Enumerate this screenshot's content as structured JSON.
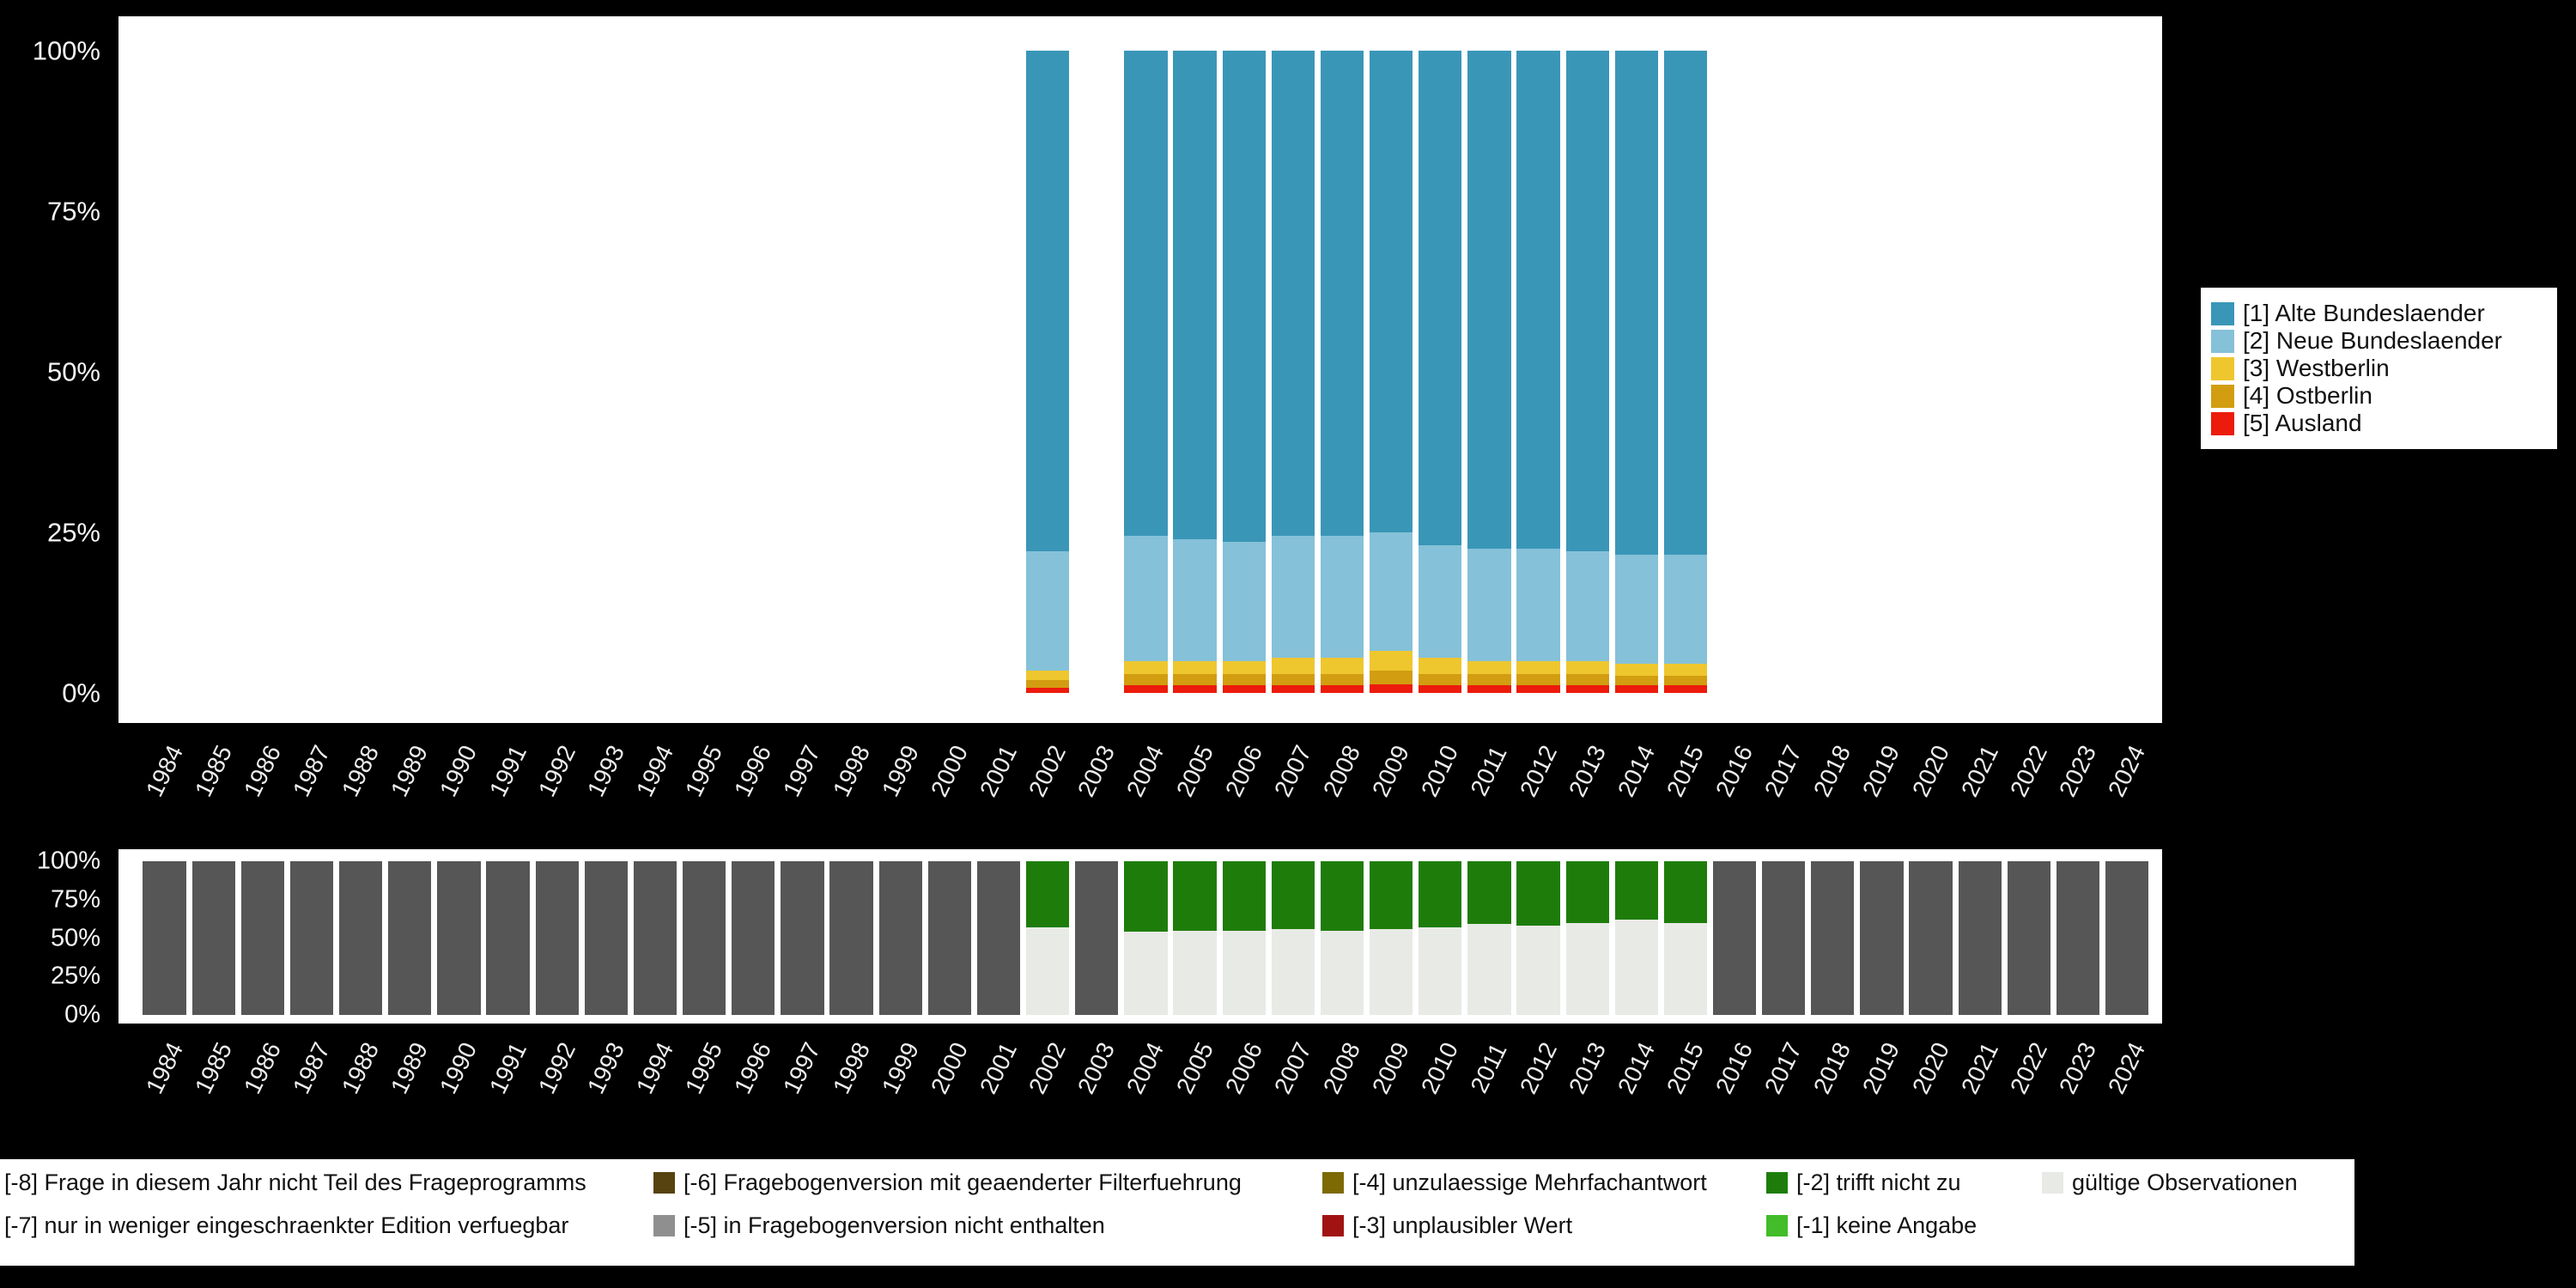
{
  "colors": {
    "background": "#000000",
    "panel": "#ffffff",
    "axis_text": "#ffffff"
  },
  "y_ticks": [
    "100%",
    "75%",
    "50%",
    "25%",
    "0%"
  ],
  "years": [
    1984,
    1985,
    1986,
    1987,
    1988,
    1989,
    1990,
    1991,
    1992,
    1993,
    1994,
    1995,
    1996,
    1997,
    1998,
    1999,
    2000,
    2001,
    2002,
    2003,
    2004,
    2005,
    2006,
    2007,
    2008,
    2009,
    2010,
    2011,
    2012,
    2013,
    2014,
    2015,
    2016,
    2017,
    2018,
    2019,
    2020,
    2021,
    2022,
    2023,
    2024
  ],
  "region_legend": {
    "items": [
      {
        "label": "[1] Alte Bundeslaender",
        "color": "#3a96b7"
      },
      {
        "label": "[2] Neue Bundeslaender",
        "color": "#85c1d8"
      },
      {
        "label": "[3] Westberlin",
        "color": "#eec72f"
      },
      {
        "label": "[4] Ostberlin",
        "color": "#d29d10"
      },
      {
        "label": "[5] Ausland",
        "color": "#ec1b0c"
      }
    ]
  },
  "missing_legend": {
    "columns": [
      [
        {
          "label": "[-8] Frage in diesem Jahr nicht Teil des Frageprogramms",
          "color": "#565656"
        },
        {
          "label": "[-7] nur in weniger eingeschraenkter Edition verfuegbar",
          "color": "#9a9a9a"
        }
      ],
      [
        {
          "label": "[-6] Fragebogenversion mit geaenderter Filterfuehrung",
          "color": "#564310"
        },
        {
          "label": "[-5] in Fragebogenversion nicht enthalten",
          "color": "#8f8f8f"
        }
      ],
      [
        {
          "label": "[-4] unzulaessige Mehrfachantwort",
          "color": "#7d6a05"
        },
        {
          "label": "[-3] unplausibler Wert",
          "color": "#a11313"
        }
      ],
      [
        {
          "label": "[-2] trifft nicht zu",
          "color": "#1e7d0a"
        },
        {
          "label": "[-1] keine Angabe",
          "color": "#42bc28"
        }
      ],
      [
        {
          "label": "gültige Observationen",
          "color": "#e8eae5"
        }
      ]
    ]
  },
  "chart_data": [
    {
      "type": "bar",
      "stacked": true,
      "title": "",
      "xlabel": "",
      "ylabel": "",
      "ylim": [
        0,
        100
      ],
      "grid": false,
      "legend_position": "right",
      "categories": [
        1984,
        1985,
        1986,
        1987,
        1988,
        1989,
        1990,
        1991,
        1992,
        1993,
        1994,
        1995,
        1996,
        1997,
        1998,
        1999,
        2000,
        2001,
        2002,
        2003,
        2004,
        2005,
        2006,
        2007,
        2008,
        2009,
        2010,
        2011,
        2012,
        2013,
        2014,
        2015,
        2016,
        2017,
        2018,
        2019,
        2020,
        2021,
        2022,
        2023,
        2024
      ],
      "series": [
        {
          "name": "[5] Ausland",
          "color": "#ec1b0c",
          "values": [
            0,
            0,
            0,
            0,
            0,
            0,
            0,
            0,
            0,
            0,
            0,
            0,
            0,
            0,
            0,
            0,
            0,
            0,
            0.8,
            0,
            1.2,
            1.2,
            1.2,
            1.2,
            1.2,
            1.3,
            1.2,
            1.2,
            1.2,
            1.2,
            1.2,
            1.2,
            0,
            0,
            0,
            0,
            0,
            0,
            0,
            0,
            0
          ]
        },
        {
          "name": "[4] Ostberlin",
          "color": "#d29d10",
          "values": [
            0,
            0,
            0,
            0,
            0,
            0,
            0,
            0,
            0,
            0,
            0,
            0,
            0,
            0,
            0,
            0,
            0,
            0,
            1.2,
            0,
            1.8,
            1.8,
            1.8,
            1.8,
            1.8,
            2.2,
            1.8,
            1.8,
            1.8,
            1.8,
            1.5,
            1.5,
            0,
            0,
            0,
            0,
            0,
            0,
            0,
            0,
            0
          ]
        },
        {
          "name": "[3] Westberlin",
          "color": "#eec72f",
          "values": [
            0,
            0,
            0,
            0,
            0,
            0,
            0,
            0,
            0,
            0,
            0,
            0,
            0,
            0,
            0,
            0,
            0,
            0,
            1.5,
            0,
            2,
            2,
            2,
            2.5,
            2.5,
            3,
            2.5,
            2,
            2,
            2,
            1.8,
            1.8,
            0,
            0,
            0,
            0,
            0,
            0,
            0,
            0,
            0
          ]
        },
        {
          "name": "[2] Neue Bundeslaender",
          "color": "#85c1d8",
          "values": [
            0,
            0,
            0,
            0,
            0,
            0,
            0,
            0,
            0,
            0,
            0,
            0,
            0,
            0,
            0,
            0,
            0,
            0,
            18.5,
            0,
            19.5,
            19,
            18.5,
            19,
            19,
            18.5,
            17.5,
            17.5,
            17.5,
            17,
            17,
            17,
            0,
            0,
            0,
            0,
            0,
            0,
            0,
            0,
            0
          ]
        },
        {
          "name": "[1] Alte Bundeslaender",
          "color": "#3a96b7",
          "values": [
            0,
            0,
            0,
            0,
            0,
            0,
            0,
            0,
            0,
            0,
            0,
            0,
            0,
            0,
            0,
            0,
            0,
            0,
            78,
            0,
            75.5,
            76,
            76.5,
            75.5,
            75.5,
            75,
            77,
            77.5,
            77.5,
            78,
            78.5,
            78.5,
            0,
            0,
            0,
            0,
            0,
            0,
            0,
            0,
            0
          ]
        }
      ]
    },
    {
      "type": "bar",
      "stacked": true,
      "title": "",
      "xlabel": "",
      "ylabel": "",
      "ylim": [
        0,
        100
      ],
      "grid": false,
      "legend_position": "bottom",
      "categories": [
        1984,
        1985,
        1986,
        1987,
        1988,
        1989,
        1990,
        1991,
        1992,
        1993,
        1994,
        1995,
        1996,
        1997,
        1998,
        1999,
        2000,
        2001,
        2002,
        2003,
        2004,
        2005,
        2006,
        2007,
        2008,
        2009,
        2010,
        2011,
        2012,
        2013,
        2014,
        2015,
        2016,
        2017,
        2018,
        2019,
        2020,
        2021,
        2022,
        2023,
        2024
      ],
      "series": [
        {
          "name": "gültige Observationen",
          "color": "#e8eae5",
          "values": [
            0,
            0,
            0,
            0,
            0,
            0,
            0,
            0,
            0,
            0,
            0,
            0,
            0,
            0,
            0,
            0,
            0,
            0,
            57,
            0,
            54,
            55,
            55,
            56,
            55,
            56,
            57,
            59,
            58,
            60,
            62,
            60,
            0,
            0,
            0,
            0,
            0,
            0,
            0,
            0,
            0
          ]
        },
        {
          "name": "[-2] trifft nicht zu",
          "color": "#1e7d0a",
          "values": [
            0,
            0,
            0,
            0,
            0,
            0,
            0,
            0,
            0,
            0,
            0,
            0,
            0,
            0,
            0,
            0,
            0,
            0,
            43,
            0,
            46,
            45,
            45,
            44,
            45,
            44,
            43,
            41,
            42,
            40,
            38,
            40,
            0,
            0,
            0,
            0,
            0,
            0,
            0,
            0,
            0
          ]
        },
        {
          "name": "[-8] Frage in diesem Jahr nicht Teil des Frageprogramms",
          "color": "#565656",
          "values": [
            100,
            100,
            100,
            100,
            100,
            100,
            100,
            100,
            100,
            100,
            100,
            100,
            100,
            100,
            100,
            100,
            100,
            100,
            0,
            100,
            0,
            0,
            0,
            0,
            0,
            0,
            0,
            0,
            0,
            0,
            0,
            0,
            100,
            100,
            100,
            100,
            100,
            100,
            100,
            100,
            100
          ]
        }
      ]
    }
  ]
}
